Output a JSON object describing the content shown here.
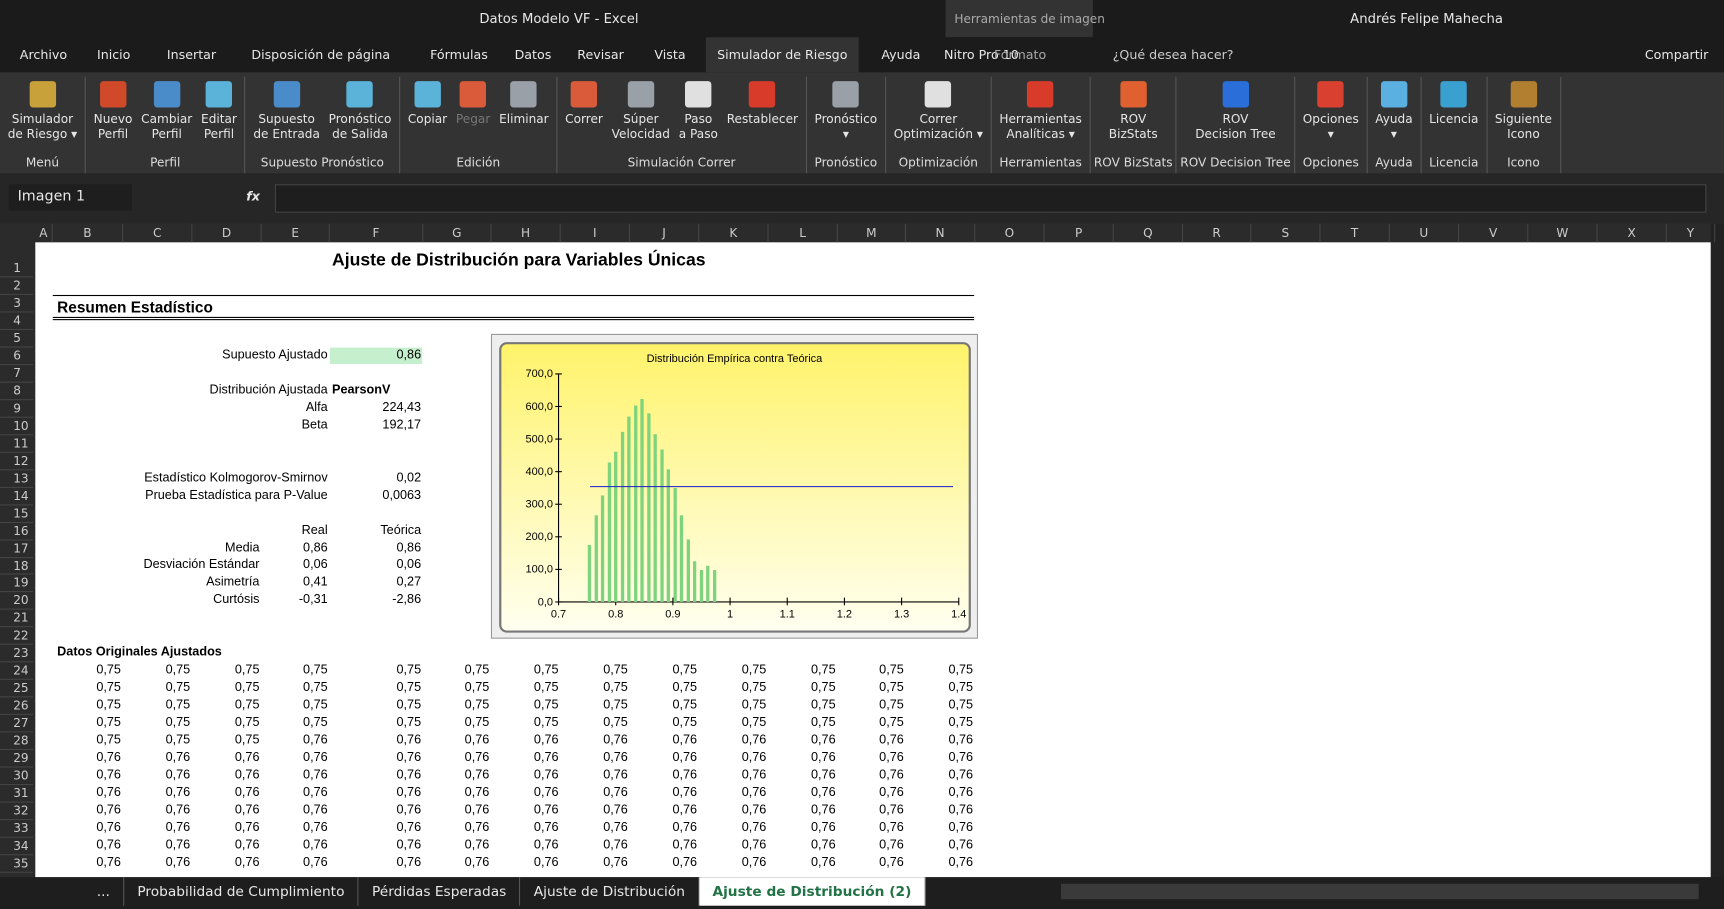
{
  "titlebar": {
    "title": "Datos Modelo VF  -  Excel",
    "context": "Herramientas de imagen",
    "user": "Andrés Felipe Mahecha"
  },
  "tabs": [
    "Archivo",
    "Inicio",
    "Insertar",
    "Disposición de página",
    "Fórmulas",
    "Datos",
    "Revisar",
    "Vista",
    "Simulador de Riesgo",
    "Ayuda",
    "Nitro Pro 10",
    "Formato"
  ],
  "search": "¿Qué desea hacer?",
  "share": "Compartir",
  "ribbon": [
    {
      "label": "Menú",
      "buttons": [
        "Simulador\nde Riesgo ▾"
      ]
    },
    {
      "label": "Perfil",
      "buttons": [
        "Nuevo\nPerfil",
        "Cambiar\nPerfil",
        "Editar\nPerfil"
      ]
    },
    {
      "label": "Supuesto  Pronóstico",
      "buttons": [
        "Supuesto\nde Entrada",
        "Pronóstico\nde Salida"
      ]
    },
    {
      "label": "Edición",
      "buttons": [
        "Copiar",
        "Pegar",
        "Eliminar"
      ]
    },
    {
      "label": "Simulación Correr",
      "buttons": [
        "Correr",
        "Súper\nVelocidad",
        "Paso\na Paso",
        "Restablecer"
      ]
    },
    {
      "label": "Pronóstico",
      "buttons": [
        "Pronóstico\n▾"
      ]
    },
    {
      "label": "Optimización",
      "buttons": [
        "Correr\nOptimización ▾"
      ]
    },
    {
      "label": "Herramientas",
      "buttons": [
        "Herramientas\nAnalíticas ▾"
      ]
    },
    {
      "label": "ROV BizStats",
      "buttons": [
        "ROV\nBizStats"
      ]
    },
    {
      "label": "ROV Decision Tree",
      "buttons": [
        "ROV\nDecision Tree"
      ]
    },
    {
      "label": "Opciones",
      "buttons": [
        "Opciones\n▾"
      ]
    },
    {
      "label": "Ayuda",
      "buttons": [
        "Ayuda\n▾"
      ]
    },
    {
      "label": "Licencia",
      "buttons": [
        "Licencia"
      ]
    },
    {
      "label": "Icono",
      "buttons": [
        "Siguiente\nIcono"
      ]
    }
  ],
  "formula_bar": {
    "name_box": "Imagen 1",
    "fx": "fx"
  },
  "columns": [
    "A",
    "B",
    "C",
    "D",
    "E",
    "F",
    "G",
    "H",
    "I",
    "J",
    "K",
    "L",
    "M",
    "N",
    "O",
    "P",
    "Q",
    "R",
    "S",
    "T",
    "U",
    "V",
    "W",
    "X",
    "Y"
  ],
  "rows": [
    1,
    2,
    3,
    4,
    5,
    6,
    7,
    8,
    9,
    10,
    11,
    12,
    13,
    14,
    15,
    16,
    17,
    18,
    19,
    20,
    21,
    22,
    23,
    24,
    25,
    26,
    27,
    28,
    29,
    30,
    31,
    32,
    33,
    34,
    35
  ],
  "sheet": {
    "title": "Ajuste de Distribución para Variables Únicas",
    "section": "Resumen Estadístico",
    "stats": [
      {
        "row": 6,
        "label": "Supuesto Ajustado",
        "value": "0,86"
      },
      {
        "row": 8,
        "label": "Distribución Ajustada",
        "value": "PearsonV"
      },
      {
        "row": 9,
        "label": "Alfa",
        "value": "224,43"
      },
      {
        "row": 10,
        "label": "Beta",
        "value": "192,17"
      },
      {
        "row": 13,
        "label": "Estadístico Kolmogorov-Smirnov",
        "value": "0,02"
      },
      {
        "row": 14,
        "label": "Prueba Estadística para P-Value",
        "value": "0,0063"
      }
    ],
    "moments_header": [
      "Real",
      "Teórica"
    ],
    "moments": [
      {
        "row": 17,
        "label": "Media",
        "real": "0,86",
        "teorica": "0,86"
      },
      {
        "row": 18,
        "label": "Desviación Estándar",
        "real": "0,06",
        "teorica": "0,06"
      },
      {
        "row": 19,
        "label": "Asimetría",
        "real": "0,41",
        "teorica": "0,27"
      },
      {
        "row": 20,
        "label": "Curtósis",
        "real": "-0,31",
        "teorica": "-2,86"
      }
    ],
    "data_title": "Datos Originales Ajustados",
    "data_rows": [
      [
        "0,75",
        "0,75",
        "0,75",
        "0,75",
        "0,75",
        "0,75",
        "0,75",
        "0,75",
        "0,75",
        "0,75",
        "0,75",
        "0,75",
        "0,75"
      ],
      [
        "0,75",
        "0,75",
        "0,75",
        "0,75",
        "0,75",
        "0,75",
        "0,75",
        "0,75",
        "0,75",
        "0,75",
        "0,75",
        "0,75",
        "0,75"
      ],
      [
        "0,75",
        "0,75",
        "0,75",
        "0,75",
        "0,75",
        "0,75",
        "0,75",
        "0,75",
        "0,75",
        "0,75",
        "0,75",
        "0,75",
        "0,75"
      ],
      [
        "0,75",
        "0,75",
        "0,75",
        "0,75",
        "0,75",
        "0,75",
        "0,75",
        "0,75",
        "0,75",
        "0,75",
        "0,75",
        "0,75",
        "0,75"
      ],
      [
        "0,75",
        "0,75",
        "0,75",
        "0,76",
        "0,76",
        "0,76",
        "0,76",
        "0,76",
        "0,76",
        "0,76",
        "0,76",
        "0,76",
        "0,76"
      ],
      [
        "0,76",
        "0,76",
        "0,76",
        "0,76",
        "0,76",
        "0,76",
        "0,76",
        "0,76",
        "0,76",
        "0,76",
        "0,76",
        "0,76",
        "0,76"
      ],
      [
        "0,76",
        "0,76",
        "0,76",
        "0,76",
        "0,76",
        "0,76",
        "0,76",
        "0,76",
        "0,76",
        "0,76",
        "0,76",
        "0,76",
        "0,76"
      ],
      [
        "0,76",
        "0,76",
        "0,76",
        "0,76",
        "0,76",
        "0,76",
        "0,76",
        "0,76",
        "0,76",
        "0,76",
        "0,76",
        "0,76",
        "0,76"
      ],
      [
        "0,76",
        "0,76",
        "0,76",
        "0,76",
        "0,76",
        "0,76",
        "0,76",
        "0,76",
        "0,76",
        "0,76",
        "0,76",
        "0,76",
        "0,76"
      ],
      [
        "0,76",
        "0,76",
        "0,76",
        "0,76",
        "0,76",
        "0,76",
        "0,76",
        "0,76",
        "0,76",
        "0,76",
        "0,76",
        "0,76",
        "0,76"
      ],
      [
        "0,76",
        "0,76",
        "0,76",
        "0,76",
        "0,76",
        "0,76",
        "0,76",
        "0,76",
        "0,76",
        "0,76",
        "0,76",
        "0,76",
        "0,76"
      ],
      [
        "0,76",
        "0,76",
        "0,76",
        "0,76",
        "0,76",
        "0,76",
        "0,76",
        "0,76",
        "0,76",
        "0,76",
        "0,76",
        "0,76",
        "0,76"
      ]
    ]
  },
  "chart": {
    "type": "bar",
    "title": "Distribución Empírica contra Teórica",
    "color": "#7ed37e",
    "line_color": "#1a1acc",
    "x": [
      0.754,
      0.766,
      0.777,
      0.789,
      0.8,
      0.812,
      0.823,
      0.835,
      0.846,
      0.858,
      0.869,
      0.881,
      0.892,
      0.904,
      0.915,
      0.927,
      0.938,
      0.95,
      0.961,
      0.973
    ],
    "values": [
      175,
      266,
      327,
      428,
      461,
      522,
      569,
      603,
      623,
      579,
      515,
      468,
      407,
      350,
      266,
      192,
      125,
      98,
      111,
      98
    ],
    "line_value": 354,
    "line_x": [
      0.755,
      1.39
    ],
    "xlim": [
      0.7,
      1.4
    ],
    "xticks": [
      0.7,
      0.8,
      0.9,
      1,
      1.1,
      1.2,
      1.3,
      1.4
    ],
    "ylim": [
      0,
      700
    ],
    "yticks": [
      {
        "value": 0,
        "label": "0,0"
      },
      {
        "value": 100,
        "label": "100,0"
      },
      {
        "value": 200,
        "label": "200,0"
      },
      {
        "value": 300,
        "label": "300,0"
      },
      {
        "value": 400,
        "label": "400,0"
      },
      {
        "value": 500,
        "label": "500,0"
      },
      {
        "value": 600,
        "label": "600,0"
      },
      {
        "value": 700,
        "label": "700,0"
      }
    ]
  },
  "sheet_tabs": [
    "...",
    "Probabilidad de Cumplimiento",
    "Pérdidas Esperadas",
    "Ajuste de Distribución",
    "Ajuste de Distribución (2)"
  ],
  "active_sheet": 4,
  "active_tab": 8
}
